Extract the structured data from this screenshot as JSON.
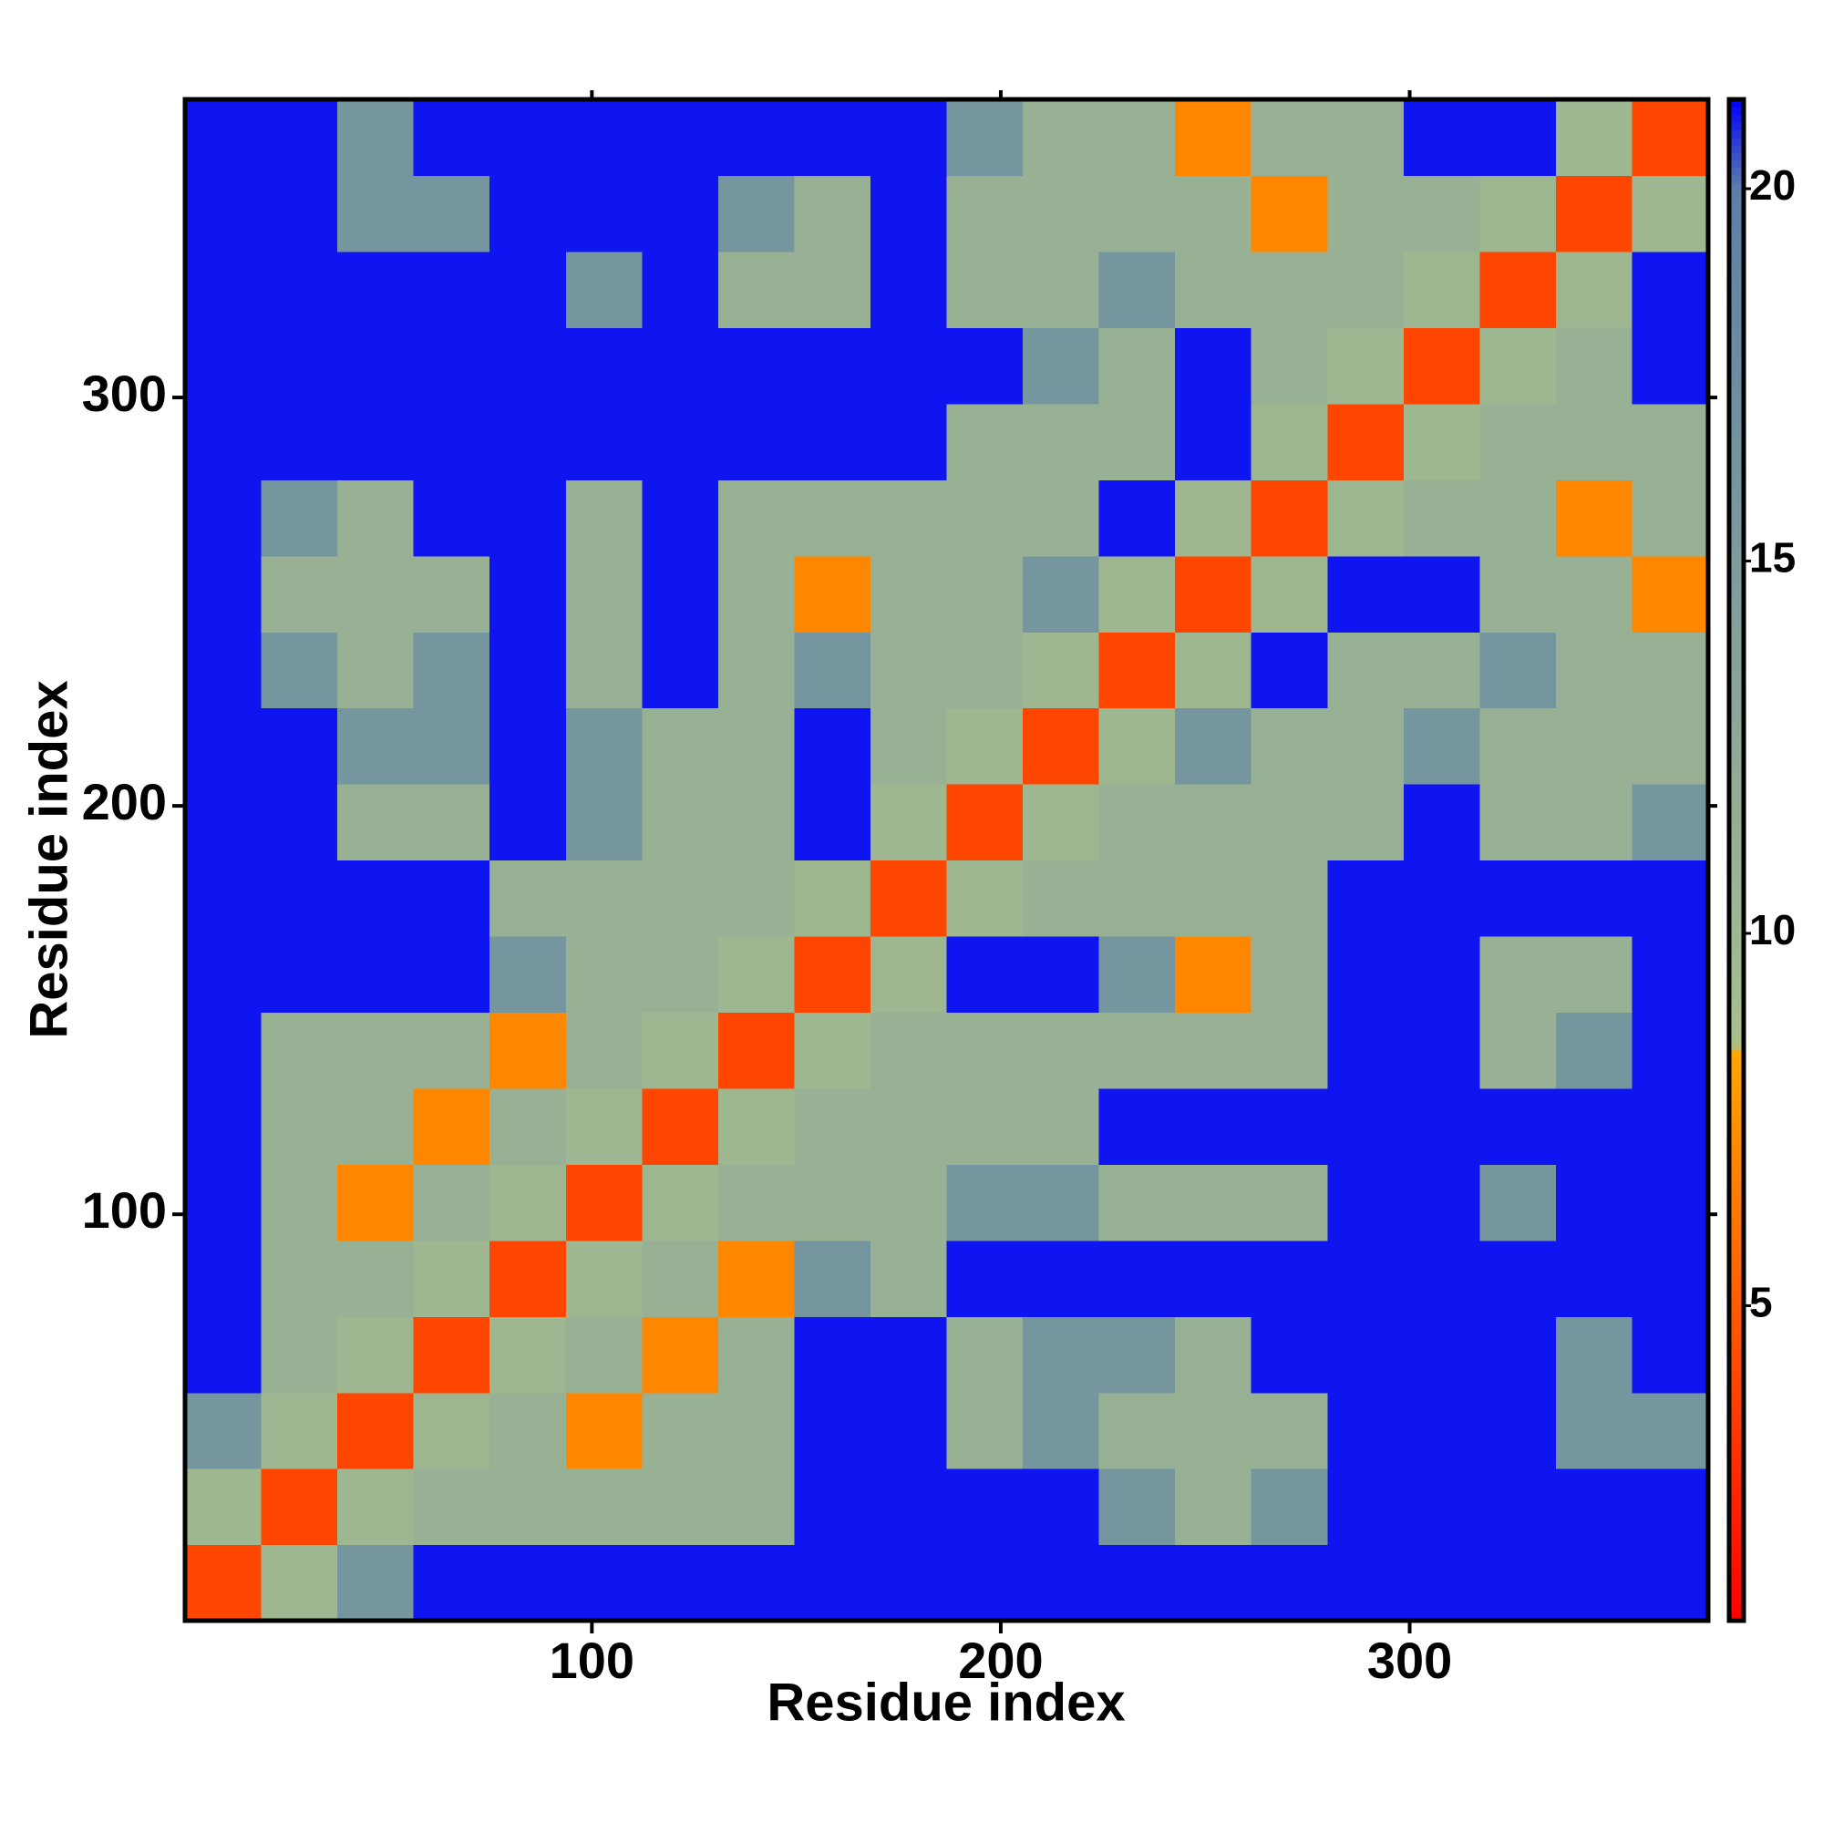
{
  "chart_data": {
    "type": "heatmap",
    "xlabel": "Residue index",
    "ylabel": "Residue index",
    "xlim": [
      0.5,
      373
    ],
    "ylim": [
      0.5,
      373
    ],
    "xticks": [
      100,
      200,
      300
    ],
    "yticks": [
      100,
      200,
      300
    ],
    "x_bins": [
      0.5,
      19.125,
      37.75,
      56.375,
      75,
      93.625,
      112.25,
      130.875,
      149.5,
      168.125,
      186.75,
      205.375,
      224,
      242.625,
      261.25,
      279.875,
      298.5,
      317.125,
      335.75,
      354.375,
      373
    ],
    "y_bins": [
      0.5,
      19.125,
      37.75,
      56.375,
      75,
      93.625,
      112.25,
      130.875,
      149.5,
      168.125,
      186.75,
      205.375,
      224,
      242.625,
      261.25,
      279.875,
      298.5,
      317.125,
      335.75,
      354.375,
      373
    ],
    "z": [
      [
        4,
        10,
        16,
        21,
        21,
        21,
        21,
        21,
        21,
        21,
        21,
        21,
        21,
        21,
        21,
        21,
        21,
        21,
        21,
        21
      ],
      [
        10,
        4,
        10,
        11,
        11,
        11,
        11,
        11,
        21,
        21,
        21,
        21,
        16,
        11,
        16,
        21,
        21,
        21,
        21,
        21
      ],
      [
        16,
        10,
        4,
        10,
        11,
        7,
        11,
        11,
        21,
        21,
        11,
        16,
        11,
        11,
        11,
        21,
        21,
        21,
        16,
        16
      ],
      [
        21,
        11,
        10,
        4,
        10,
        11,
        7,
        11,
        21,
        21,
        11,
        16,
        16,
        11,
        21,
        21,
        21,
        21,
        16,
        21
      ],
      [
        21,
        11,
        11,
        10,
        4,
        10,
        11,
        7,
        16,
        11,
        21,
        21,
        21,
        21,
        21,
        21,
        21,
        21,
        21,
        21
      ],
      [
        21,
        11,
        7,
        11,
        10,
        4,
        10,
        11,
        11,
        11,
        16,
        16,
        11,
        11,
        11,
        21,
        21,
        16,
        21,
        21
      ],
      [
        21,
        11,
        11,
        7,
        11,
        10,
        4,
        10,
        11,
        11,
        11,
        11,
        21,
        21,
        21,
        21,
        21,
        21,
        21,
        21
      ],
      [
        21,
        11,
        11,
        11,
        7,
        11,
        10,
        4,
        10,
        11,
        11,
        11,
        11,
        11,
        11,
        21,
        21,
        11,
        16,
        21
      ],
      [
        21,
        21,
        21,
        21,
        16,
        11,
        11,
        10,
        4,
        10,
        21,
        21,
        16,
        7,
        11,
        21,
        21,
        11,
        11,
        21
      ],
      [
        21,
        21,
        21,
        21,
        11,
        11,
        11,
        11,
        10,
        4,
        10,
        11,
        11,
        11,
        11,
        21,
        21,
        21,
        21,
        21
      ],
      [
        21,
        21,
        11,
        11,
        21,
        16,
        11,
        11,
        21,
        10,
        4,
        10,
        11,
        11,
        11,
        11,
        21,
        11,
        11,
        16
      ],
      [
        21,
        21,
        16,
        16,
        21,
        16,
        11,
        11,
        21,
        11,
        10,
        4,
        10,
        16,
        11,
        11,
        16,
        11,
        11,
        11
      ],
      [
        21,
        16,
        11,
        16,
        21,
        11,
        21,
        11,
        16,
        11,
        11,
        10,
        4,
        10,
        21,
        11,
        11,
        16,
        11,
        11
      ],
      [
        21,
        11,
        11,
        11,
        21,
        11,
        21,
        11,
        7,
        11,
        11,
        16,
        10,
        4,
        10,
        21,
        21,
        11,
        11,
        7
      ],
      [
        21,
        16,
        11,
        21,
        21,
        11,
        21,
        11,
        11,
        11,
        11,
        11,
        21,
        10,
        4,
        10,
        11,
        11,
        7,
        11
      ],
      [
        21,
        21,
        21,
        21,
        21,
        21,
        21,
        21,
        21,
        21,
        11,
        11,
        11,
        21,
        10,
        4,
        10,
        11,
        11,
        11
      ],
      [
        21,
        21,
        21,
        21,
        21,
        21,
        21,
        21,
        21,
        21,
        21,
        16,
        11,
        21,
        11,
        10,
        4,
        10,
        11,
        21
      ],
      [
        21,
        21,
        21,
        21,
        21,
        16,
        21,
        11,
        11,
        21,
        11,
        11,
        16,
        11,
        11,
        11,
        10,
        4,
        10,
        21
      ],
      [
        21,
        21,
        16,
        16,
        21,
        21,
        21,
        16,
        11,
        21,
        11,
        11,
        11,
        11,
        7,
        11,
        11,
        10,
        4,
        10
      ],
      [
        21,
        21,
        16,
        21,
        21,
        21,
        21,
        21,
        21,
        21,
        16,
        11,
        11,
        7,
        11,
        11,
        21,
        21,
        10,
        4
      ]
    ],
    "colorbar": {
      "lim": [
        0.77,
        21.2
      ],
      "ticks": [
        5,
        10,
        15,
        20
      ],
      "colorscale": [
        [
          0.77,
          "#ff0000"
        ],
        [
          8.4,
          "#ffa500"
        ],
        [
          8.5,
          "#a9bf8e"
        ],
        [
          20,
          "#5b80a8"
        ],
        [
          21.2,
          "#0000ff"
        ]
      ]
    }
  }
}
